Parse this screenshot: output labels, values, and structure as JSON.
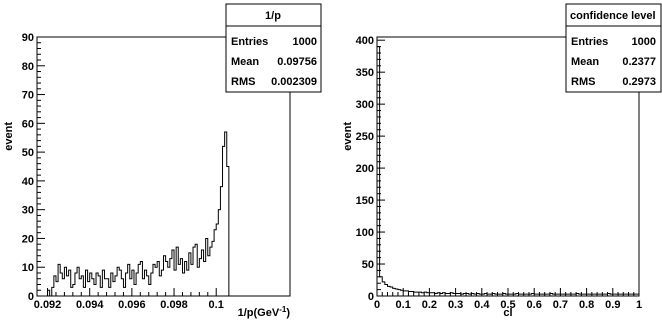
{
  "chart_data": [
    {
      "type": "histogram",
      "title": "",
      "xlabel": "1/p(GeV",
      "xlabel_sup": "-1",
      "xlabel_suffix": ")",
      "ylabel": "event",
      "xlim": [
        0.0915,
        0.1035
      ],
      "ylim": [
        0,
        90
      ],
      "x_ticks": [
        0.092,
        0.094,
        0.096,
        0.098,
        0.1
      ],
      "x_tick_labels": [
        "0.092",
        "0.094",
        "0.096",
        "0.098",
        "0.1"
      ],
      "y_ticks": [
        0,
        10,
        20,
        30,
        40,
        50,
        60,
        70,
        80,
        90
      ],
      "y_tick_labels": [
        "0",
        "10",
        "20",
        "30",
        "40",
        "50",
        "60",
        "70",
        "80",
        "90"
      ],
      "grid": false,
      "bin_start": 0.092,
      "bin_width": 0.0001,
      "values": [
        2,
        0,
        3,
        7,
        5,
        11,
        8,
        6,
        10,
        7,
        9,
        3,
        4,
        8,
        10,
        6,
        7,
        3,
        9,
        5,
        8,
        6,
        4,
        8,
        7,
        3,
        9,
        6,
        6,
        3,
        8,
        5,
        7,
        10,
        9,
        6,
        3,
        8,
        11,
        6,
        9,
        4,
        8,
        11,
        12,
        6,
        9,
        7,
        4,
        8,
        11,
        10,
        12,
        7,
        9,
        14,
        12,
        10,
        13,
        16,
        9,
        17,
        11,
        13,
        8,
        12,
        9,
        15,
        11,
        17,
        18,
        10,
        13,
        16,
        12,
        20,
        14,
        17,
        19,
        23,
        25,
        30,
        38,
        52,
        57,
        45,
        0
      ],
      "stats": {
        "title": "1/p",
        "rows": [
          {
            "label": "Entries",
            "value": "1000"
          },
          {
            "label": "Mean",
            "value": "0.09756"
          },
          {
            "label": "RMS",
            "value": "0.002309"
          }
        ]
      }
    },
    {
      "type": "histogram",
      "title": "",
      "xlabel": "cl",
      "ylabel": "event",
      "xlim": [
        0,
        1
      ],
      "ylim": [
        0,
        405
      ],
      "x_ticks": [
        0,
        0.1,
        0.2,
        0.3,
        0.4,
        0.5,
        0.6,
        0.7,
        0.8,
        0.9,
        1
      ],
      "x_tick_labels": [
        "0",
        "0.1",
        "0.2",
        "0.3",
        "0.4",
        "0.5",
        "0.6",
        "0.7",
        "0.8",
        "0.9",
        "1"
      ],
      "y_ticks": [
        0,
        50,
        100,
        150,
        200,
        250,
        300,
        350,
        400
      ],
      "y_tick_labels": [
        "0",
        "50",
        "100",
        "150",
        "200",
        "250",
        "300",
        "350",
        "400"
      ],
      "grid": false,
      "bin_start": 0,
      "bin_width": 0.01,
      "values": [
        390,
        30,
        22,
        18,
        15,
        14,
        12,
        11,
        10,
        9,
        8,
        8,
        7,
        7,
        6,
        6,
        6,
        5,
        6,
        5,
        5,
        5,
        4,
        5,
        4,
        5,
        4,
        4,
        5,
        4,
        4,
        4,
        3,
        4,
        4,
        3,
        4,
        3,
        4,
        3,
        3,
        4,
        3,
        3,
        4,
        3,
        3,
        3,
        4,
        3,
        3,
        3,
        3,
        4,
        3,
        3,
        3,
        3,
        3,
        4,
        3,
        3,
        3,
        3,
        3,
        3,
        4,
        3,
        3,
        3,
        3,
        3,
        3,
        3,
        3,
        3,
        4,
        3,
        3,
        3,
        3,
        3,
        3,
        3,
        3,
        3,
        3,
        3,
        4,
        3,
        3,
        3,
        3,
        3,
        3,
        3,
        3,
        3,
        3,
        3
      ],
      "stats": {
        "title": "confidence level",
        "rows": [
          {
            "label": "Entries",
            "value": "1000"
          },
          {
            "label": "Mean",
            "value": "0.2377"
          },
          {
            "label": "RMS",
            "value": "0.2973"
          }
        ]
      }
    }
  ]
}
